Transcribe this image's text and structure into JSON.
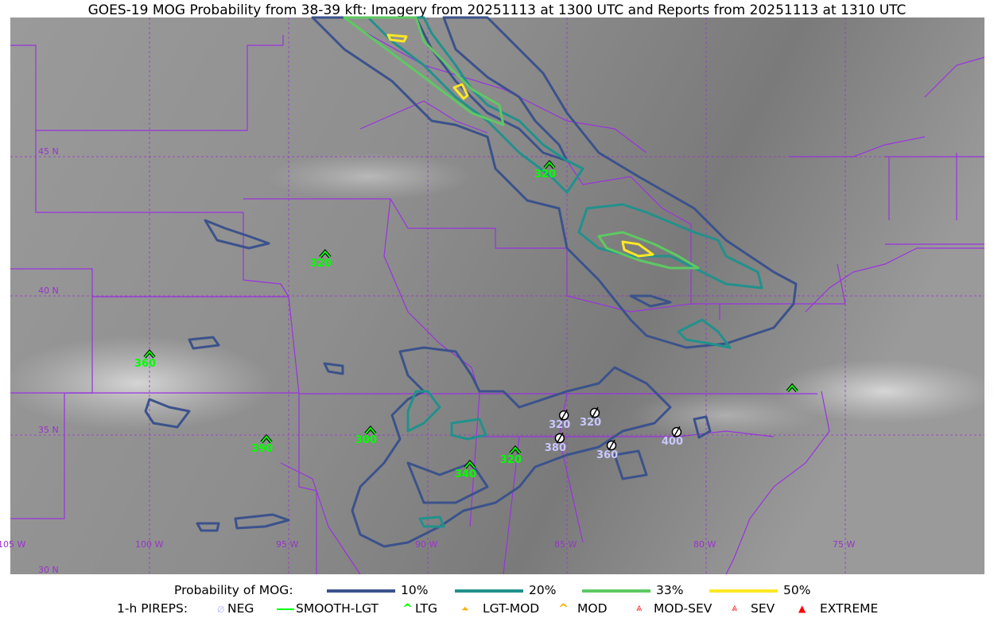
{
  "title": "GOES-19 MOG Probability from 38-39 kft: Imagery from 20251113 at 1300 UTC and Reports from 20251113 at 1310 UTC",
  "map": {
    "lat_labels": [
      "45 N",
      "40 N",
      "35 N",
      "30 N"
    ],
    "lon_labels": [
      "105 W",
      "100 W",
      "95 W",
      "90 W",
      "85 W",
      "80 W",
      "75 W"
    ],
    "grid_color": "#9933cc",
    "border_color": "#9933dd"
  },
  "contour_colors": {
    "p10": "#3b528b",
    "p20": "#21918c",
    "p33": "#5ec962",
    "p50": "#fde725"
  },
  "pireps": [
    {
      "type": "LTG",
      "alt": "320",
      "lat": 44.71,
      "lon": -85.63
    },
    {
      "type": "LTG",
      "alt": "320",
      "lat": 41.51,
      "lon": -93.69
    },
    {
      "type": "LTG",
      "alt": "360",
      "lat": 37.91,
      "lon": -100.0
    },
    {
      "type": "LTG",
      "alt": "",
      "lat": 36.69,
      "lon": -76.91
    },
    {
      "type": "LTG",
      "alt": "390",
      "lat": 34.86,
      "lon": -95.8
    },
    {
      "type": "LTG",
      "alt": "300",
      "lat": 35.17,
      "lon": -92.06
    },
    {
      "type": "LTG",
      "alt": "340",
      "lat": 33.94,
      "lon": -88.49
    },
    {
      "type": "LTG",
      "alt": "320",
      "lat": 34.46,
      "lon": -86.86
    },
    {
      "type": "NEG",
      "alt": "320",
      "lat": 35.71,
      "lon": -85.11
    },
    {
      "type": "NEG",
      "alt": "320",
      "lat": 35.8,
      "lon": -84.0
    },
    {
      "type": "NEG",
      "alt": "380",
      "lat": 34.89,
      "lon": -85.26
    },
    {
      "type": "NEG",
      "alt": "360",
      "lat": 34.63,
      "lon": -83.4
    },
    {
      "type": "NEG",
      "alt": "400",
      "lat": 35.11,
      "lon": -81.06
    }
  ],
  "legend": {
    "prob_label": "Probability of MOG:",
    "prob_items": [
      {
        "label": "10%",
        "color": "#3b528b"
      },
      {
        "label": "20%",
        "color": "#21918c"
      },
      {
        "label": "33%",
        "color": "#5ec962"
      },
      {
        "label": "50%",
        "color": "#fde725"
      }
    ],
    "pirep_label": "1-h PIREPS:",
    "pirep_items": [
      {
        "label": "NEG",
        "icon": "neg-circle-slash-icon",
        "color": "#c8c8ff"
      },
      {
        "label": "SMOOTH-LGT",
        "icon": "line-icon",
        "color": "#00ff00"
      },
      {
        "label": "LTG",
        "icon": "caret-icon",
        "color": "#00ff00"
      },
      {
        "label": "LGT-MOD",
        "icon": "caret-bar-icon",
        "color": "#ffb000"
      },
      {
        "label": "MOD",
        "icon": "caret-icon",
        "color": "#ffb000"
      },
      {
        "label": "MOD-SEV",
        "icon": "double-caret-bar-icon",
        "color": "#ff3030"
      },
      {
        "label": "SEV",
        "icon": "double-caret-icon",
        "color": "#ff3030"
      },
      {
        "label": "EXTREME",
        "icon": "filled-triangle-icon",
        "color": "#ff0000"
      }
    ]
  }
}
